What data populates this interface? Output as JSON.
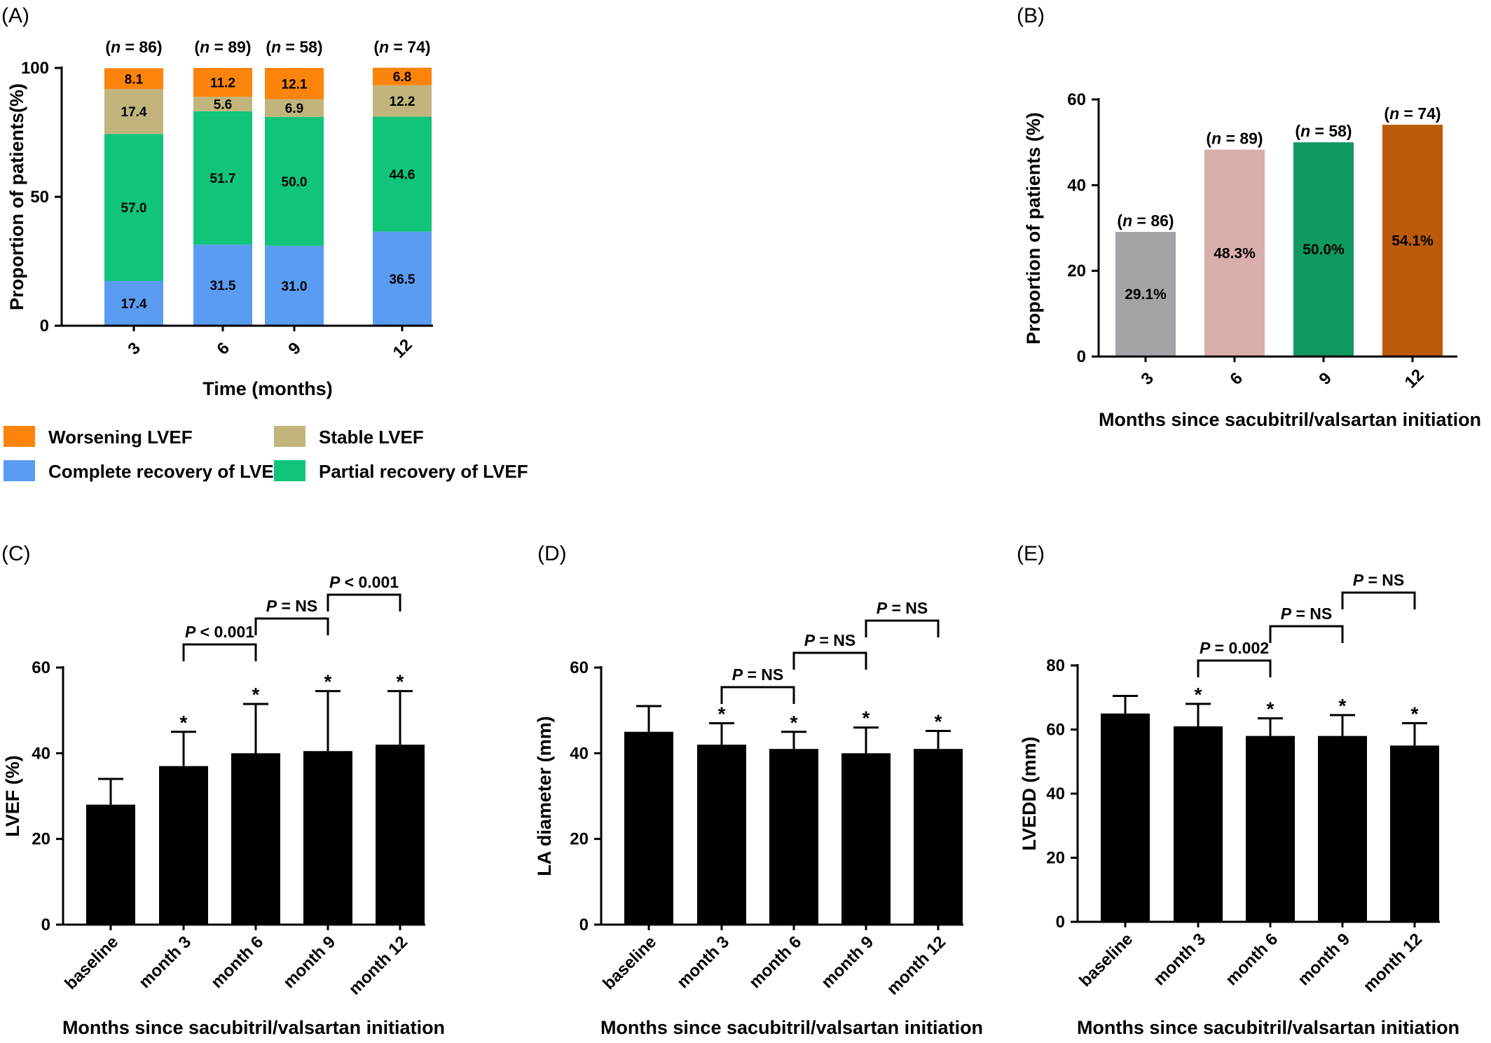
{
  "panels": [
    {
      "letter": "(A)",
      "chart_data": {
        "type": "bar",
        "stacked": true,
        "categories": [
          "3",
          "6",
          "9",
          "12"
        ],
        "n_labels": [
          "86",
          "89",
          "58",
          "74"
        ],
        "series": [
          {
            "name": "Complete recovery of LVEF",
            "color": "#5A9CF2",
            "values": [
              17.4,
              31.5,
              31.0,
              36.5
            ],
            "labels": [
              "17.4",
              "31.5",
              "31.0",
              "36.5"
            ]
          },
          {
            "name": "Partial recovery of LVEF",
            "color": "#10C47A",
            "values": [
              57.0,
              51.7,
              50.0,
              44.6
            ],
            "labels": [
              "57.0",
              "51.7",
              "50.0",
              "44.6"
            ]
          },
          {
            "name": "Stable  LVEF",
            "color": "#C1B47D",
            "values": [
              17.4,
              5.6,
              6.9,
              12.2
            ],
            "labels": [
              "17.4",
              "5.6",
              "6.9",
              "12.2"
            ]
          },
          {
            "name": "Worsening LVEF",
            "color": "#FC830C",
            "values": [
              8.1,
              11.2,
              12.1,
              6.8
            ],
            "labels": [
              "8.1",
              "11.2",
              "12.1",
              "6.8"
            ]
          }
        ],
        "legend_order": [
          3,
          0,
          2,
          1
        ],
        "ylim": [
          0,
          100
        ],
        "yticks": [
          0,
          50,
          100
        ],
        "ylabel": "Proportion of patients(%)",
        "xlabel": "Time (months)"
      }
    },
    {
      "letter": "(B)",
      "chart_data": {
        "type": "bar",
        "categories": [
          "3",
          "6",
          "9",
          "12"
        ],
        "values": [
          29.1,
          48.3,
          50.0,
          54.1
        ],
        "value_labels": [
          "29.1%",
          "48.3%",
          "50.0%",
          "54.1%"
        ],
        "n_labels": [
          "86",
          "89",
          "58",
          "74"
        ],
        "colors": [
          "#A4A3A8",
          "#D8AEAB",
          "#10995F",
          "#BB5B0A"
        ],
        "ylim": [
          0,
          60
        ],
        "yticks": [
          0,
          20,
          40,
          60
        ],
        "ylabel": "Proportion of patients (%)",
        "xlabel": "Months since sacubitril/valsartan initiation"
      }
    },
    {
      "letter": "(C)",
      "chart_data": {
        "type": "bar",
        "categories": [
          "baseline",
          "month 3",
          "month 6",
          "month 9",
          "month 12"
        ],
        "values": [
          28,
          37,
          40,
          40.5,
          42
        ],
        "errors": [
          6,
          8,
          11.5,
          14,
          12.5
        ],
        "significant": [
          false,
          true,
          true,
          true,
          true
        ],
        "comparisons": [
          {
            "from": 1,
            "to": 2,
            "text": "< 0.001",
            "level": 0
          },
          {
            "from": 2,
            "to": 3,
            "text": "= NS",
            "level": 1
          },
          {
            "from": 3,
            "to": 4,
            "text": "< 0.001",
            "level": 2
          }
        ],
        "ylim": [
          0,
          60
        ],
        "yticks": [
          0,
          20,
          40,
          60
        ],
        "ylabel": "LVEF (%)",
        "xlabel": "Months since sacubitril/valsartan initiation"
      }
    },
    {
      "letter": "(D)",
      "chart_data": {
        "type": "bar",
        "categories": [
          "baseline",
          "month 3",
          "month 6",
          "month 9",
          "month 12"
        ],
        "values": [
          45,
          42,
          41,
          40,
          41
        ],
        "errors": [
          6,
          5,
          4,
          6,
          4.2
        ],
        "significant": [
          false,
          true,
          true,
          true,
          true
        ],
        "comparisons": [
          {
            "from": 1,
            "to": 2,
            "text": "= NS",
            "level": 0
          },
          {
            "from": 2,
            "to": 3,
            "text": "= NS",
            "level": 1
          },
          {
            "from": 3,
            "to": 4,
            "text": "= NS",
            "level": 2
          }
        ],
        "ylim": [
          0,
          60
        ],
        "yticks": [
          0,
          20,
          40,
          60
        ],
        "ylabel": "LA diameter (mm)",
        "xlabel": "Months since sacubitril/valsartan initiation"
      }
    },
    {
      "letter": "(E)",
      "chart_data": {
        "type": "bar",
        "categories": [
          "baseline",
          "month 3",
          "month 6",
          "month 9",
          "month 12"
        ],
        "values": [
          65,
          61,
          58,
          58,
          55
        ],
        "errors": [
          5.5,
          7,
          5.5,
          6.5,
          7
        ],
        "significant": [
          false,
          true,
          true,
          true,
          true
        ],
        "comparisons": [
          {
            "from": 1,
            "to": 2,
            "text": "= 0.002",
            "level": 0
          },
          {
            "from": 2,
            "to": 3,
            "text": "= NS",
            "level": 1
          },
          {
            "from": 3,
            "to": 4,
            "text": "= NS",
            "level": 2
          }
        ],
        "ylim": [
          0,
          80
        ],
        "yticks": [
          0,
          20,
          40,
          60,
          80
        ],
        "ylabel": "LVEDD (mm)",
        "xlabel": "Months since sacubitril/valsartan initiation"
      }
    }
  ],
  "common": {
    "n_prefix": "n",
    "n_sep": " = ",
    "p_symbol": "P",
    "star": "*"
  }
}
